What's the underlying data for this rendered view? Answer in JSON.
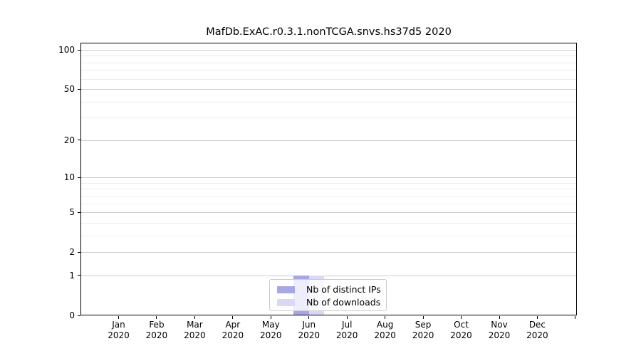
{
  "chart_data": {
    "type": "bar",
    "title": "MafDb.ExAC.r0.3.1.nonTCGA.snvs.hs37d5 2020",
    "year": "2020",
    "categories": [
      "Jan",
      "Feb",
      "Mar",
      "Apr",
      "May",
      "Jun",
      "Jul",
      "Aug",
      "Sep",
      "Oct",
      "Nov",
      "Dec"
    ],
    "series": [
      {
        "name": "Nb of distinct IPs",
        "color": "#a6a6ea",
        "values": [
          0,
          0,
          0,
          0,
          0,
          1,
          0,
          0,
          0,
          0,
          0,
          0
        ]
      },
      {
        "name": "Nb of downloads",
        "color": "#d9d9f6",
        "values": [
          0,
          0,
          0,
          0,
          0,
          1,
          0,
          0,
          0,
          0,
          0,
          0
        ]
      }
    ],
    "y_axis": {
      "scale": "log1p",
      "major_ticks": [
        0,
        1,
        2,
        5,
        10,
        20,
        50,
        100
      ],
      "minor_ticks": [
        3,
        4,
        6,
        7,
        8,
        9,
        30,
        40,
        60,
        70,
        80,
        90
      ],
      "range": [
        0,
        113
      ]
    },
    "x_axis": {
      "tick_count": 13,
      "labeled_ticks": 12
    },
    "legend": {
      "position": "bottom-center",
      "entries": [
        {
          "label": "Nb of distinct IPs",
          "color": "#a6a6ea"
        },
        {
          "label": "Nb of downloads",
          "color": "#d9d9f6"
        }
      ]
    },
    "grid": "horizontal",
    "colors": {
      "background": "#ffffff",
      "spine": "#000000",
      "grid_major": "#cdcdcd",
      "grid_minor": "#ececec",
      "text": "#000000"
    }
  }
}
